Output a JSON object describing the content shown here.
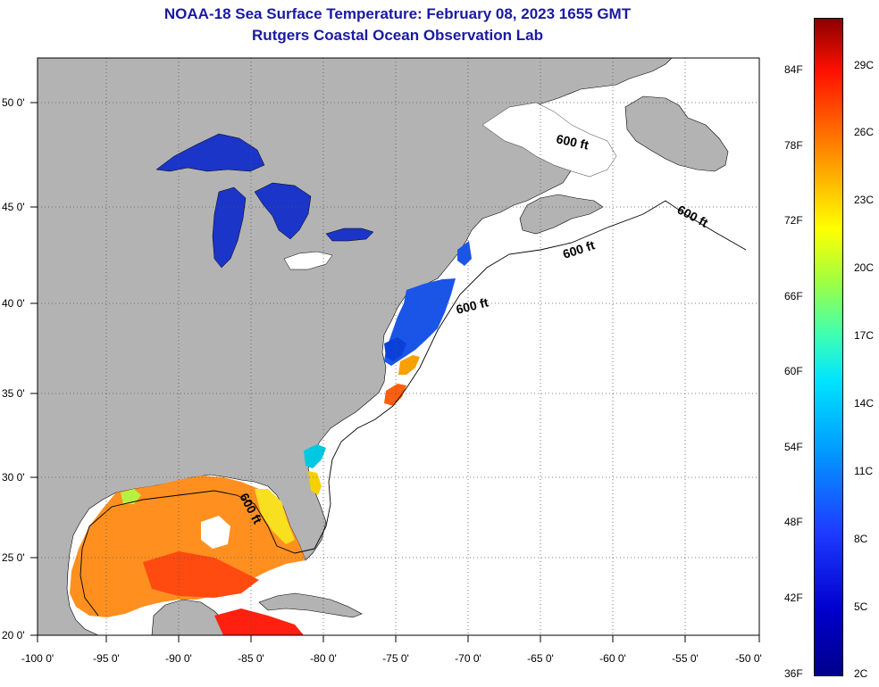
{
  "title": {
    "line1": "NOAA-18 Sea Surface Temperature:  February 08, 2023 1655 GMT",
    "line2": "Rutgers Coastal Ocean Observation Lab"
  },
  "map": {
    "x_axis_ticks": [
      "-100 0'",
      "-95 0'",
      "-90 0'",
      "-85 0'",
      "-80 0'",
      "-75 0'",
      "-70 0'",
      "-65 0'",
      "-60 0'",
      "-55 0'",
      "-50 0'"
    ],
    "y_axis_ticks": [
      "50 0'",
      "45 0'",
      "40 0'",
      "35 0'",
      "30 0'",
      "25 0'",
      "20 0'"
    ],
    "lon_range": [
      -100,
      -50
    ],
    "lat_range": [
      20,
      52.5
    ],
    "land_color": "#b3b3b3",
    "ocean_color": "#ffffff",
    "contour_label": "600 ft",
    "contour_labels": [
      "600 ft",
      "600 ft",
      "600 ft",
      "600 ft",
      "600 ft"
    ]
  },
  "colorbar": {
    "fahrenheit_labels": [
      "84F",
      "78F",
      "72F",
      "66F",
      "60F",
      "54F",
      "48F",
      "42F",
      "36F"
    ],
    "celsius_labels": [
      "29C",
      "26C",
      "23C",
      "20C",
      "17C",
      "14C",
      "11C",
      "8C",
      "5C",
      "2C"
    ],
    "colors": [
      "#00008b",
      "#0000cd",
      "#1e3cff",
      "#00a0ff",
      "#00e5ff",
      "#40ffb0",
      "#a0ff40",
      "#ffff00",
      "#ffb000",
      "#ff6000",
      "#ff1000",
      "#8b0000"
    ]
  }
}
